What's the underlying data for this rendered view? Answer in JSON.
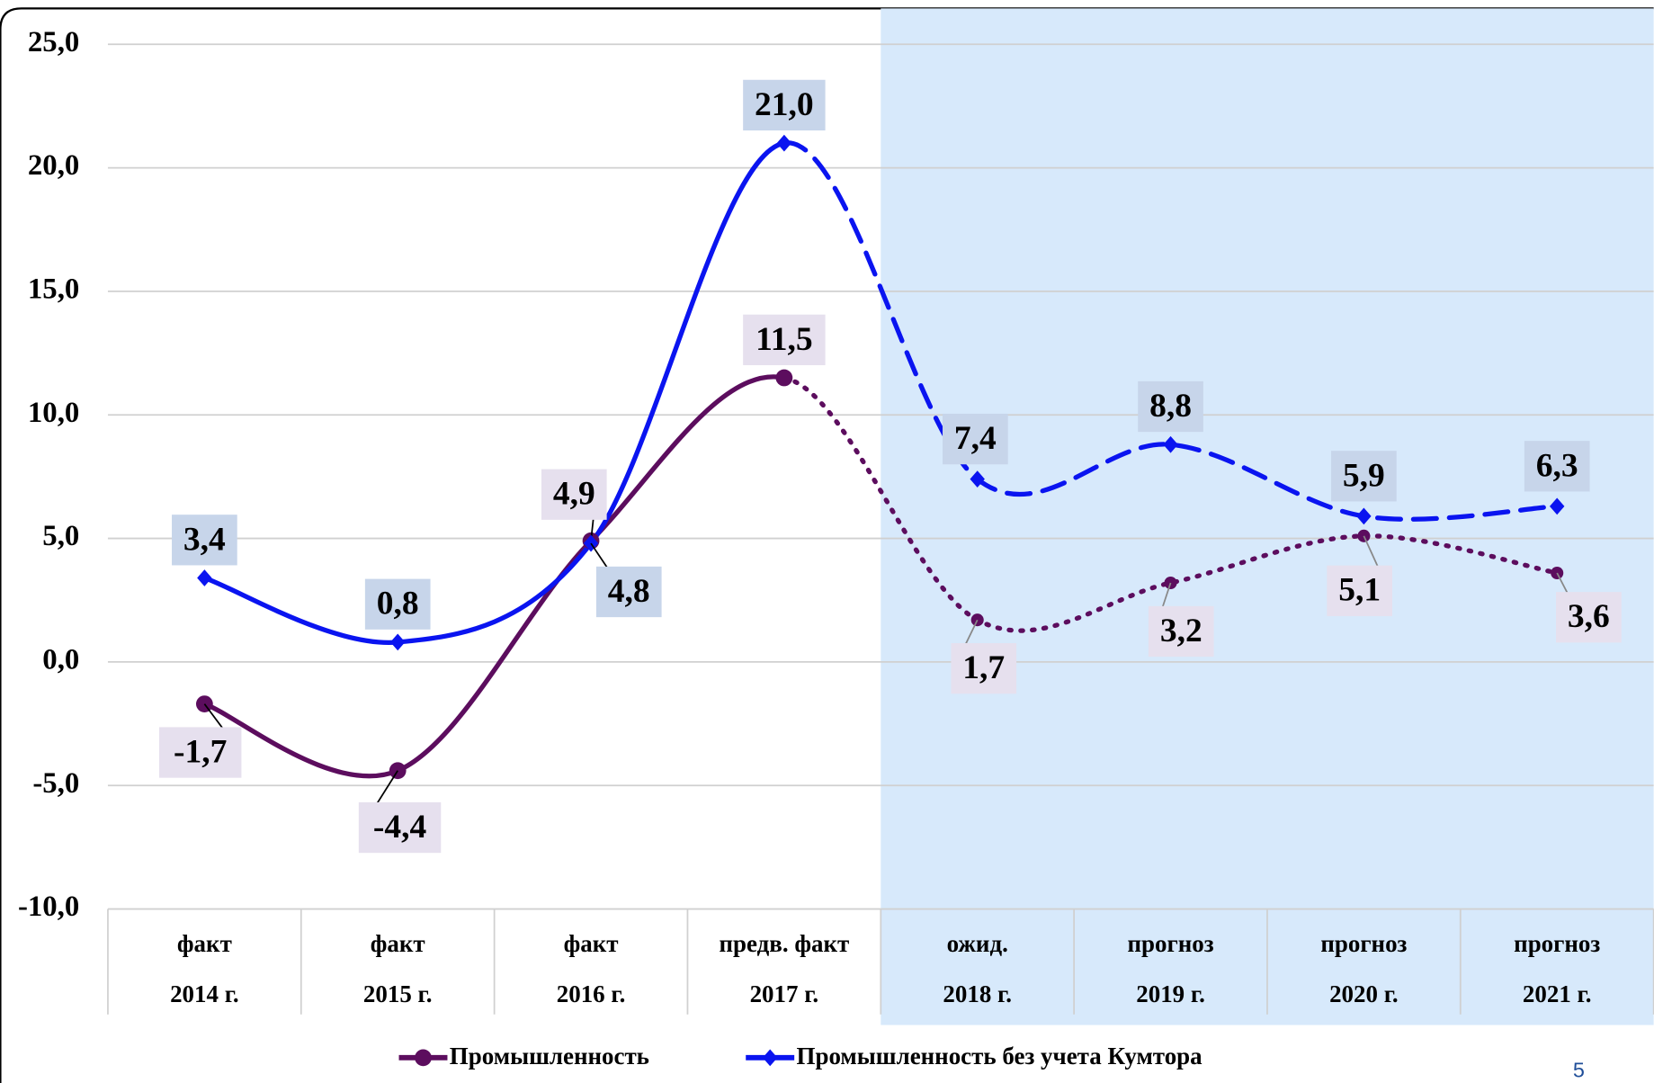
{
  "chart_data": {
    "type": "line",
    "categories": [
      [
        "факт",
        "2014 г."
      ],
      [
        "факт",
        "2015 г."
      ],
      [
        "факт",
        "2016 г."
      ],
      [
        "предв. факт",
        "2017 г."
      ],
      [
        "ожид.",
        "2018 г."
      ],
      [
        "прогноз",
        "2019 г."
      ],
      [
        "прогноз",
        "2020 г."
      ],
      [
        "прогноз",
        "2021 г."
      ]
    ],
    "series": [
      {
        "name": "Промышленность",
        "color": "#5c0d5e",
        "marker": "circle",
        "forecast_dash": "dotted",
        "values": [
          -1.7,
          -4.4,
          4.9,
          11.5,
          1.7,
          3.2,
          5.1,
          3.6
        ],
        "value_labels": [
          "-1,7",
          "-4,4",
          "4,9",
          "11,5",
          "1,7",
          "3,2",
          "5,1",
          "3,6"
        ]
      },
      {
        "name": "Промышленность без учета Кумтора",
        "color": "#0a14f0",
        "marker": "diamond",
        "forecast_dash": "dashed",
        "values": [
          3.4,
          0.8,
          4.8,
          21.0,
          7.4,
          8.8,
          5.9,
          6.3
        ],
        "value_labels": [
          "3,4",
          "0,8",
          "4,8",
          "21,0",
          "7,4",
          "8,8",
          "5,9",
          "6,3"
        ]
      }
    ],
    "forecast_from": 3,
    "shade_from": 4,
    "ylim": [
      -10,
      25
    ],
    "yticks": [
      {
        "value": -10,
        "label": "-10,0"
      },
      {
        "value": -5,
        "label": "-5,0"
      },
      {
        "value": 0,
        "label": "0,0"
      },
      {
        "value": 5,
        "label": "5,0"
      },
      {
        "value": 10,
        "label": "10,0"
      },
      {
        "value": 15,
        "label": "15,0"
      },
      {
        "value": 20,
        "label": "20,0"
      },
      {
        "value": 25,
        "label": "25,0"
      }
    ],
    "grid": true,
    "legend": "bottom",
    "page_number": "5"
  }
}
